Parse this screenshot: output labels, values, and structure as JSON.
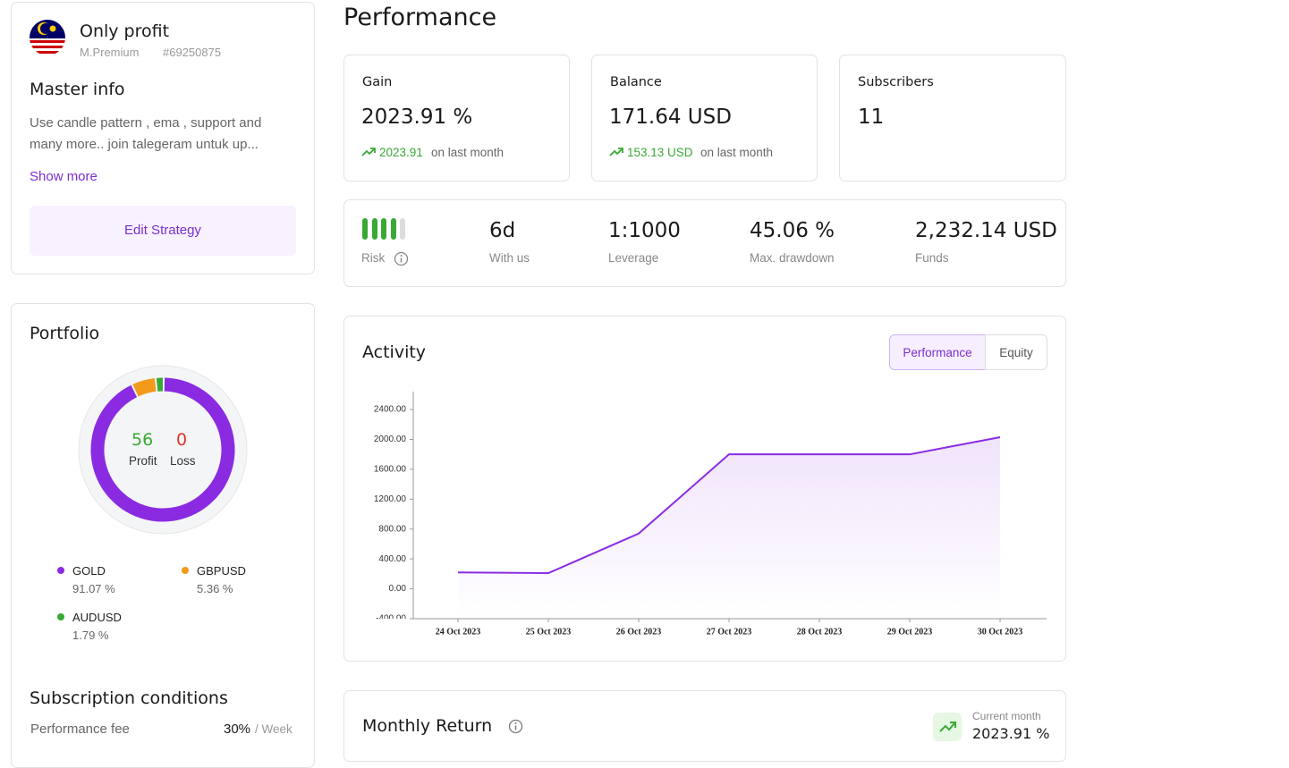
{
  "profile": {
    "name": "Only profit",
    "tier": "M.Premium",
    "account": "#69250875"
  },
  "master_info": {
    "title": "Master info",
    "description_1": "Use candle pattern , ema , support and",
    "description_2": "many more.. join talegeram untuk up...",
    "show_more": "Show more",
    "button": "Edit Strategy"
  },
  "portfolio": {
    "title": "Portfolio",
    "profit": 56,
    "profit_label": "Profit",
    "loss": 0,
    "loss_label": "Loss",
    "assets": [
      {
        "name": "GOLD",
        "value": 91.07,
        "value_label": "91.07 %",
        "color": "#8a2be2"
      },
      {
        "name": "GBPUSD",
        "value": 5.36,
        "value_label": "5.36 %",
        "color": "#f39a1b"
      },
      {
        "name": "AUDUSD",
        "value": 1.79,
        "value_label": "1.79 %",
        "color": "#39a935"
      }
    ]
  },
  "subscription": {
    "title": "Subscription conditions",
    "fee_label": "Performance fee",
    "fee_value": "30%",
    "fee_unit": "/ Week"
  },
  "page_title": "Performance",
  "stats": [
    {
      "label": "Gain",
      "value": "2023.91 %",
      "change": "2023.91",
      "change_note": "on last month"
    },
    {
      "label": "Balance",
      "value": "171.64 USD",
      "change": "153.13 USD",
      "change_note": "on last month"
    },
    {
      "label": "Subscribers",
      "value": "11"
    }
  ],
  "risk": {
    "label": "Risk",
    "level": 4,
    "max": 5
  },
  "metrics": [
    {
      "value": "6d",
      "label": "With us"
    },
    {
      "value": "1:1000",
      "label": "Leverage"
    },
    {
      "value": "45.06 %",
      "label": "Max. drawdown"
    },
    {
      "value": "2,232.14 USD",
      "label": "Funds"
    }
  ],
  "activity": {
    "title": "Activity",
    "tabs": [
      "Performance",
      "Equity"
    ],
    "active_tab": 0
  },
  "chart_data": {
    "type": "line",
    "categories": [
      "24 Oct 2023",
      "25 Oct 2023",
      "26 Oct 2023",
      "27 Oct 2023",
      "28 Oct 2023",
      "29 Oct 2023",
      "30 Oct 2023"
    ],
    "values": [
      220,
      210,
      740,
      1800,
      1800,
      1800,
      2030
    ],
    "color": "#8a2be2",
    "ylim": [
      -400,
      2640
    ],
    "yticks": [
      {
        "value": -400,
        "label": "-400.00"
      },
      {
        "value": 0,
        "label": "0.00"
      },
      {
        "value": 400,
        "label": "400.00"
      },
      {
        "value": 800,
        "label": "800.00"
      },
      {
        "value": 1200,
        "label": "1200.00"
      },
      {
        "value": 1600,
        "label": "1600.00"
      },
      {
        "value": 2000,
        "label": "2000.00"
      },
      {
        "value": 2400,
        "label": "2400.00"
      }
    ]
  },
  "monthly_return": {
    "title": "Monthly Return",
    "current_label": "Current month",
    "current_value": "2023.91 %"
  }
}
